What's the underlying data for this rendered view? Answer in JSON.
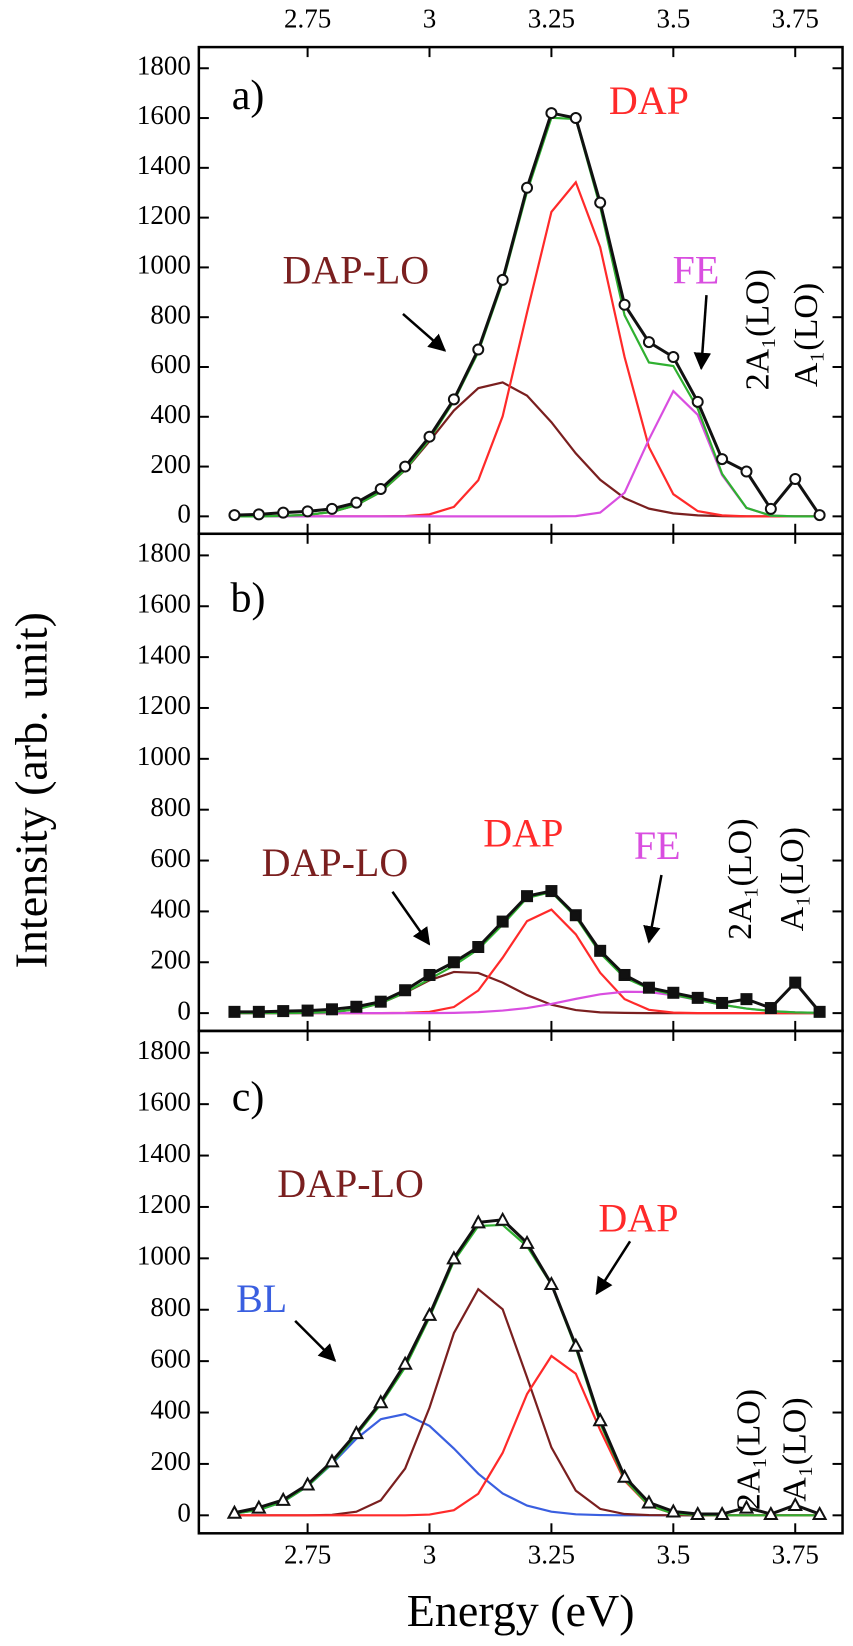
{
  "chart_data": [
    {
      "type": "line",
      "label": "a)",
      "xaxis_labels": "top",
      "x": [
        2.6,
        2.65,
        2.7,
        2.75,
        2.8,
        2.85,
        2.9,
        2.95,
        3.0,
        3.05,
        3.1,
        3.15,
        3.2,
        3.25,
        3.3,
        3.35,
        3.4,
        3.45,
        3.5,
        3.55,
        3.6,
        3.65,
        3.7,
        3.75,
        3.8
      ],
      "xlim": [
        2.527,
        3.847
      ],
      "xticks": [
        2.75,
        3.0,
        3.25,
        3.5,
        3.75
      ],
      "ylim": [
        -70,
        1885
      ],
      "yticks": [
        0,
        200,
        400,
        600,
        800,
        1000,
        1200,
        1400,
        1600,
        1800
      ],
      "annotations": [
        "2A₁(LO)",
        "A₁(LO)"
      ],
      "series": [
        {
          "name": "DAP-LO",
          "color": "#7a1f1f",
          "values": [
            0,
            0,
            2,
            6,
            18,
            45,
            98,
            186,
            302,
            425,
            515,
            538,
            485,
            378,
            253,
            147,
            73,
            31,
            12,
            4,
            1,
            0,
            0,
            0,
            0
          ]
        },
        {
          "name": "DAP",
          "color": "#ff2a2a",
          "values": [
            0,
            0,
            0,
            0,
            0,
            0,
            0,
            1,
            8,
            38,
            145,
            402,
            819,
            1223,
            1342,
            1081,
            640,
            278,
            89,
            21,
            4,
            0,
            0,
            0,
            0
          ]
        },
        {
          "name": "FE",
          "color": "#d94ee0",
          "values": [
            0,
            0,
            0,
            0,
            0,
            0,
            0,
            0,
            0,
            0,
            0,
            0,
            0,
            0,
            1,
            15,
            95,
            309,
            503,
            408,
            166,
            34,
            3,
            0,
            0
          ]
        },
        {
          "color": "#2fb030",
          "values": [
            0,
            0,
            2,
            6,
            18,
            45,
            98,
            187,
            310,
            463,
            660,
            940,
            1304,
            1601,
            1596,
            1243,
            808,
            618,
            604,
            433,
            171,
            34,
            3,
            0,
            0
          ]
        },
        {
          "color": "#111111",
          "marker": "circle",
          "values": [
            5,
            8,
            15,
            20,
            30,
            55,
            110,
            200,
            320,
            470,
            670,
            950,
            1320,
            1620,
            1600,
            1260,
            850,
            700,
            640,
            460,
            230,
            180,
            30,
            150,
            5
          ]
        }
      ]
    },
    {
      "type": "line",
      "label": "b)",
      "xaxis_labels": "none",
      "ylabel": "Intensity (arb. unit)",
      "x": [
        2.6,
        2.65,
        2.7,
        2.75,
        2.8,
        2.85,
        2.9,
        2.95,
        3.0,
        3.05,
        3.1,
        3.15,
        3.2,
        3.25,
        3.3,
        3.35,
        3.4,
        3.45,
        3.5,
        3.55,
        3.6,
        3.65,
        3.7,
        3.75,
        3.8
      ],
      "xlim": [
        2.527,
        3.847
      ],
      "xticks": [
        2.75,
        3.0,
        3.25,
        3.5,
        3.75
      ],
      "ylim": [
        -70,
        1885
      ],
      "yticks": [
        0,
        200,
        400,
        600,
        800,
        1000,
        1200,
        1400,
        1600,
        1800
      ],
      "annotations": [
        "2A₁(LO)",
        "A₁(LO)"
      ],
      "series": [
        {
          "name": "DAP-LO",
          "color": "#7a1f1f",
          "values": [
            0,
            0,
            0,
            1,
            4,
            15,
            39,
            80,
            129,
            162,
            158,
            120,
            71,
            33,
            12,
            3,
            1,
            0,
            0,
            0,
            0,
            0,
            0,
            0,
            0
          ]
        },
        {
          "name": "DAP",
          "color": "#ff2a2a",
          "values": [
            0,
            0,
            0,
            0,
            0,
            0,
            0,
            1,
            5,
            24,
            89,
            218,
            362,
            407,
            310,
            159,
            55,
            13,
            2,
            0,
            0,
            0,
            0,
            0,
            0
          ]
        },
        {
          "name": "FE",
          "color": "#d94ee0",
          "values": [
            0,
            0,
            0,
            0,
            0,
            0,
            0,
            0,
            0,
            1,
            4,
            10,
            20,
            36,
            56,
            74,
            84,
            83,
            70,
            52,
            33,
            18,
            8,
            3,
            1
          ]
        },
        {
          "color": "#2fb030",
          "values": [
            0,
            0,
            0,
            1,
            4,
            15,
            39,
            81,
            134,
            187,
            251,
            348,
            453,
            476,
            378,
            236,
            140,
            96,
            72,
            52,
            33,
            18,
            8,
            3,
            1
          ]
        },
        {
          "color": "#111111",
          "marker": "square",
          "values": [
            5,
            5,
            8,
            10,
            15,
            25,
            45,
            90,
            150,
            200,
            260,
            360,
            460,
            480,
            385,
            245,
            150,
            100,
            80,
            60,
            40,
            55,
            20,
            120,
            5
          ]
        }
      ]
    },
    {
      "type": "line",
      "label": "c)",
      "xaxis_labels": "bottom",
      "xlabel": "Energy (eV)",
      "x": [
        2.6,
        2.65,
        2.7,
        2.75,
        2.8,
        2.85,
        2.9,
        2.95,
        3.0,
        3.05,
        3.1,
        3.15,
        3.2,
        3.25,
        3.3,
        3.35,
        3.4,
        3.45,
        3.5,
        3.55,
        3.6,
        3.65,
        3.7,
        3.75,
        3.8
      ],
      "xlim": [
        2.527,
        3.847
      ],
      "xticks": [
        2.75,
        3.0,
        3.25,
        3.5,
        3.75
      ],
      "ylim": [
        -70,
        1885
      ],
      "yticks": [
        0,
        200,
        400,
        600,
        800,
        1000,
        1200,
        1400,
        1600,
        1800
      ],
      "annotations": [
        "2A₁(LO)",
        "A₁(LO)"
      ],
      "series": [
        {
          "name": "BL",
          "color": "#3a5fe0",
          "values": [
            7,
            21,
            53,
            113,
            200,
            298,
            374,
            394,
            348,
            260,
            162,
            85,
            38,
            14,
            4,
            1,
            0,
            0,
            0,
            0,
            0,
            0,
            0,
            0,
            0
          ]
        },
        {
          "name": "DAP-LO",
          "color": "#7a1f1f",
          "values": [
            0,
            0,
            0,
            0,
            2,
            14,
            58,
            182,
            419,
            709,
            880,
            802,
            537,
            264,
            96,
            25,
            5,
            1,
            0,
            0,
            0,
            0,
            0,
            0,
            0
          ]
        },
        {
          "name": "DAP",
          "color": "#ff2a2a",
          "values": [
            0,
            0,
            0,
            0,
            0,
            0,
            0,
            0,
            3,
            20,
            84,
            243,
            472,
            620,
            551,
            332,
            135,
            37,
            7,
            1,
            0,
            0,
            0,
            0,
            0
          ]
        },
        {
          "color": "#2fb030",
          "values": [
            7,
            21,
            53,
            113,
            202,
            312,
            432,
            576,
            770,
            989,
            1126,
            1130,
            1047,
            898,
            651,
            358,
            140,
            38,
            7,
            1,
            0,
            0,
            0,
            0,
            0
          ]
        },
        {
          "color": "#111111",
          "marker": "triangle",
          "values": [
            10,
            30,
            60,
            120,
            210,
            320,
            440,
            590,
            780,
            1000,
            1140,
            1150,
            1060,
            900,
            660,
            370,
            150,
            50,
            15,
            5,
            5,
            30,
            5,
            40,
            5
          ]
        }
      ]
    }
  ]
}
